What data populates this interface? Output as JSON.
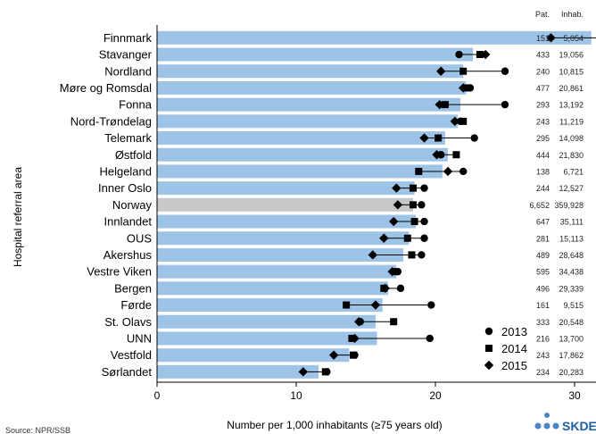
{
  "chart_data": {
    "type": "bar",
    "orientation": "horizontal",
    "ylabel": "Hospital referral area",
    "xlabel": "Number per 1,000 inhabitants (≥75 years old)",
    "xlim": [
      0,
      35
    ],
    "xticks": [
      0,
      10,
      20,
      30
    ],
    "grid": false,
    "highlight_category": "Norway",
    "colors": {
      "bar": "#9dc3e6",
      "highlight_bar": "#c8c8c8",
      "marker": "#000000"
    },
    "categories": [
      "Finnmark",
      "Stavanger",
      "Nordland",
      "Møre og Romsdal",
      "Fonna",
      "Nord-Trøndelag",
      "Telemark",
      "Østfold",
      "Helgeland",
      "Inner Oslo",
      "Norway",
      "Innlandet",
      "OUS",
      "Akershus",
      "Vestre Viken",
      "Bergen",
      "Førde",
      "St. Olavs",
      "UNN",
      "Vestfold",
      "Sørlandet"
    ],
    "bar_values": [
      31.2,
      22.7,
      22.0,
      22.2,
      21.8,
      21.6,
      20.7,
      20.9,
      20.5,
      18.5,
      18.4,
      18.6,
      18.1,
      17.7,
      17.2,
      16.6,
      16.2,
      15.7,
      15.8,
      13.8,
      11.6
    ],
    "bar_meaning": "mean",
    "series": [
      {
        "name": "2013",
        "marker": "circle",
        "values": [
          32.0,
          21.7,
          25.0,
          22.5,
          25.0,
          21.8,
          22.8,
          20.4,
          22.0,
          19.2,
          19.0,
          19.2,
          19.2,
          19.0,
          17.3,
          17.5,
          19.7,
          14.6,
          19.6,
          14.2,
          12.2
        ]
      },
      {
        "name": "2014",
        "marker": "square",
        "values": [
          33.5,
          23.2,
          22.0,
          22.3,
          20.7,
          22.0,
          20.2,
          21.5,
          18.8,
          18.4,
          18.4,
          18.5,
          18.0,
          18.3,
          17.1,
          16.3,
          13.6,
          17.0,
          14.0,
          14.1,
          12.1
        ]
      },
      {
        "name": "2015",
        "marker": "diamond",
        "values": [
          28.3,
          23.6,
          20.4,
          22.0,
          20.3,
          21.4,
          19.2,
          20.1,
          20.9,
          17.2,
          17.3,
          17.0,
          16.3,
          15.5,
          16.9,
          16.4,
          15.7,
          14.5,
          14.2,
          12.7,
          10.5
        ]
      }
    ],
    "legend_position": "bottom-right",
    "table": {
      "headers": [
        "Pat.",
        "Inhab."
      ],
      "rows": [
        [
          "151",
          "5,054"
        ],
        [
          "433",
          "19,056"
        ],
        [
          "240",
          "10,815"
        ],
        [
          "477",
          "20,861"
        ],
        [
          "293",
          "13,192"
        ],
        [
          "243",
          "11,219"
        ],
        [
          "295",
          "14,098"
        ],
        [
          "444",
          "21,830"
        ],
        [
          "138",
          "6,721"
        ],
        [
          "244",
          "12,527"
        ],
        [
          "6,652",
          "359,928"
        ],
        [
          "647",
          "35,111"
        ],
        [
          "281",
          "15,113"
        ],
        [
          "489",
          "28,648"
        ],
        [
          "595",
          "34,438"
        ],
        [
          "496",
          "29,339"
        ],
        [
          "161",
          "9,515"
        ],
        [
          "333",
          "20,548"
        ],
        [
          "216",
          "13,700"
        ],
        [
          "243",
          "17,862"
        ],
        [
          "234",
          "20,283"
        ]
      ]
    },
    "source": "Source: NPR/SSB",
    "logo_text": "SKDE"
  }
}
